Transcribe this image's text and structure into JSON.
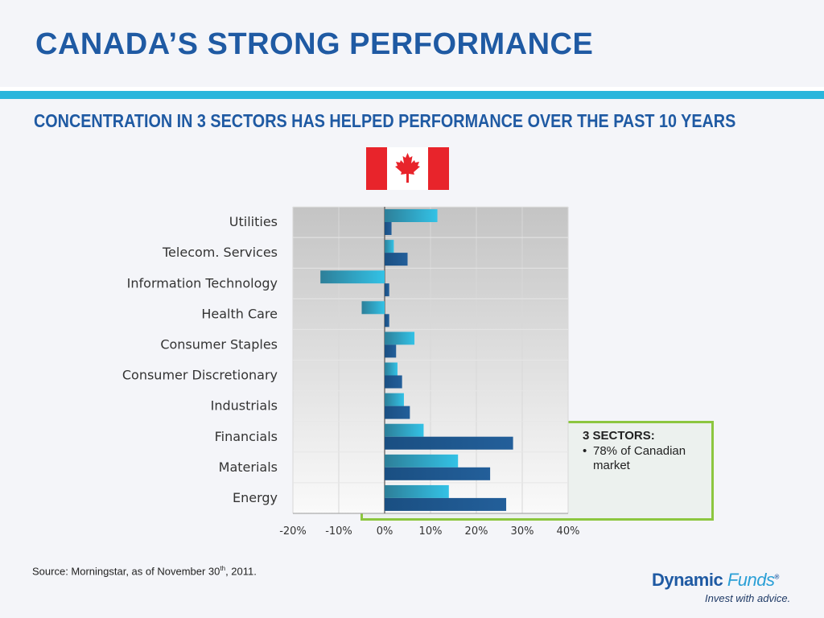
{
  "header": {
    "title": "CANADA’S STRONG PERFORMANCE",
    "subtitle": "CONCENTRATION IN 3 SECTORS HAS HELPED PERFORMANCE OVER THE PAST 10 YEARS"
  },
  "colors": {
    "title": "#1f5aa3",
    "accent_rule": "#2bb6dc",
    "highlight_border": "#8cc63f",
    "series_light": "#2fb3d8",
    "series_dark": "#1e5b93",
    "flag_red": "#e8242b"
  },
  "flag": {
    "icon": "canada-flag"
  },
  "chart_data": {
    "type": "bar",
    "orientation": "horizontal",
    "categories": [
      "Utilities",
      "Telecom. Services",
      "Information Technology",
      "Health Care",
      "Consumer Staples",
      "Consumer Discretionary",
      "Industrials",
      "Financials",
      "Materials",
      "Energy"
    ],
    "series": [
      {
        "values": [
          11.5,
          2.0,
          -14,
          -5,
          6.5,
          2.8,
          4.2,
          8.5,
          16,
          14
        ]
      },
      {
        "values": [
          1.5,
          5,
          1.0,
          1.0,
          2.5,
          3.8,
          5.5,
          28,
          23,
          26.5
        ]
      }
    ],
    "xlim": [
      -20,
      40
    ],
    "xticks": [
      -20,
      -10,
      0,
      10,
      20,
      30,
      40
    ],
    "xtick_labels": [
      "-20%",
      "-10%",
      "0%",
      "10%",
      "20%",
      "30%",
      "40%"
    ],
    "grid": true,
    "highlighted_categories": [
      "Financials",
      "Materials",
      "Energy"
    ]
  },
  "callout": {
    "title": "3 SECTORS:",
    "bullet": "78% of Canadian market"
  },
  "footer": {
    "source_prefix": "Source: Morningstar, as of November 30",
    "source_sup": "th",
    "source_suffix": ", 2011."
  },
  "logo": {
    "brand_1": "Dynamic",
    "brand_2": "Funds",
    "registered": "®",
    "tagline": "Invest with advice."
  }
}
